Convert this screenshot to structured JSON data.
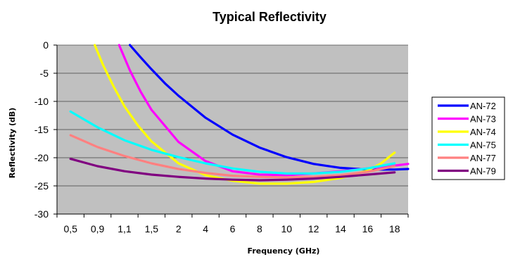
{
  "chart_data": {
    "type": "line",
    "title": "Typical Reflectivity",
    "xlabel": "Frequency (GHz)",
    "ylabel": "Reflectivity (dB)",
    "categories": [
      "0,5",
      "0,9",
      "1,1",
      "1,5",
      "2",
      "4",
      "6",
      "8",
      "10",
      "12",
      "14",
      "16",
      "18"
    ],
    "ylim": [
      -30,
      0
    ],
    "yticks": [
      "0",
      "-5",
      "-10",
      "-15",
      "-20",
      "-25",
      "-30"
    ],
    "grid": true,
    "legend_position": "right",
    "plot_background": "#c0c0c0",
    "series": [
      {
        "name": "AN-72",
        "color": "#0000ff",
        "x": [
          2.2,
          2.6,
          3.0,
          3.5,
          4.0,
          5.0,
          6.0,
          7.0,
          8.0,
          9.0,
          10.0,
          11.0,
          12.0,
          12.5
        ],
        "y": [
          0,
          -2.2,
          -4.3,
          -6.8,
          -9.0,
          -12.9,
          -15.9,
          -18.2,
          -19.9,
          -21.1,
          -21.8,
          -22.1,
          -22.1,
          -22.0
        ]
      },
      {
        "name": "AN-73",
        "color": "#ff00ff",
        "x": [
          1.8,
          2.2,
          2.6,
          3.0,
          4.0,
          5.0,
          6.0,
          7.0,
          8.0,
          9.0,
          10.0,
          11.0,
          12.0,
          12.5
        ],
        "y": [
          0,
          -4.5,
          -8.3,
          -11.5,
          -17.2,
          -20.6,
          -22.4,
          -23.0,
          -23.1,
          -22.8,
          -22.4,
          -21.9,
          -21.4,
          -21.1
        ]
      },
      {
        "name": "AN-74",
        "color": "#ffff00",
        "x": [
          0.9,
          1.2,
          1.6,
          2.0,
          2.5,
          3.0,
          4.0,
          5.0,
          6.0,
          7.0,
          8.0,
          9.0,
          10.0,
          11.0,
          11.5,
          12.0
        ],
        "y": [
          0,
          -3.5,
          -7.4,
          -10.9,
          -14.3,
          -17.1,
          -21.0,
          -23.1,
          -24.1,
          -24.6,
          -24.6,
          -24.3,
          -23.6,
          -22.3,
          -21.0,
          -19.1
        ]
      },
      {
        "name": "AN-75",
        "color": "#00ffff",
        "x": [
          0,
          1,
          2,
          3,
          4,
          5,
          6,
          7,
          8,
          9,
          10,
          11,
          12
        ],
        "y": [
          -11.8,
          -14.6,
          -16.9,
          -18.6,
          -19.9,
          -21.0,
          -21.9,
          -22.5,
          -22.8,
          -22.8,
          -22.5,
          -21.9,
          -21.0
        ]
      },
      {
        "name": "AN-77",
        "color": "#ff8080",
        "x": [
          0,
          1,
          2,
          3,
          4,
          5,
          6,
          7,
          8,
          9,
          10,
          11,
          12
        ],
        "y": [
          -16.0,
          -18.1,
          -19.7,
          -21.0,
          -22.0,
          -22.7,
          -23.2,
          -23.4,
          -23.5,
          -23.4,
          -23.1,
          -22.5,
          -21.5
        ]
      },
      {
        "name": "AN-79",
        "color": "#800080",
        "x": [
          0,
          1,
          2,
          3,
          4,
          5,
          6,
          7,
          8,
          9,
          10,
          11,
          12
        ],
        "y": [
          -20.2,
          -21.5,
          -22.4,
          -23.0,
          -23.4,
          -23.7,
          -23.9,
          -24.0,
          -23.9,
          -23.7,
          -23.4,
          -23.0,
          -22.6
        ]
      }
    ]
  }
}
